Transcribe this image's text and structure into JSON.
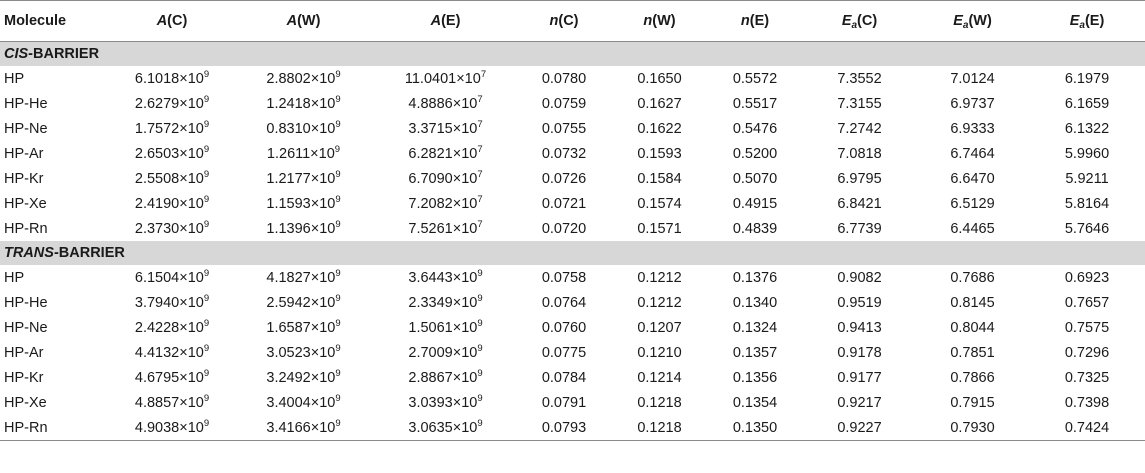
{
  "table": {
    "headers": [
      {
        "sym": "",
        "sub": "",
        "arg": "Molecule"
      },
      {
        "sym": "A",
        "sub": "",
        "arg": "(C)"
      },
      {
        "sym": "A",
        "sub": "",
        "arg": "(W)"
      },
      {
        "sym": "A",
        "sub": "",
        "arg": "(E)"
      },
      {
        "sym": "n",
        "sub": "",
        "arg": "(C)"
      },
      {
        "sym": "n",
        "sub": "",
        "arg": "(W)"
      },
      {
        "sym": "n",
        "sub": "",
        "arg": "(E)"
      },
      {
        "sym": "E",
        "sub": "a",
        "arg": "(C)"
      },
      {
        "sym": "E",
        "sub": "a",
        "arg": "(W)"
      },
      {
        "sym": "E",
        "sub": "a",
        "arg": "(E)"
      }
    ],
    "sections": [
      {
        "title_italic": "CIS",
        "title_rest": "-BARRIER",
        "rows": [
          {
            "molecule": "HP",
            "a": [
              {
                "m": "6.1018×10",
                "e": "9"
              },
              {
                "m": "2.8802×10",
                "e": "9"
              },
              {
                "m": "11.0401×10",
                "e": "7"
              }
            ],
            "vals": [
              "0.0780",
              "0.1650",
              "0.5572",
              "7.3552",
              "7.0124",
              "6.1979"
            ]
          },
          {
            "molecule": "HP-He",
            "a": [
              {
                "m": "2.6279×10",
                "e": "9"
              },
              {
                "m": "1.2418×10",
                "e": "9"
              },
              {
                "m": "4.8886×10",
                "e": "7"
              }
            ],
            "vals": [
              "0.0759",
              "0.1627",
              "0.5517",
              "7.3155",
              "6.9737",
              "6.1659"
            ]
          },
          {
            "molecule": "HP-Ne",
            "a": [
              {
                "m": "1.7572×10",
                "e": "9"
              },
              {
                "m": "0.8310×10",
                "e": "9"
              },
              {
                "m": "3.3715×10",
                "e": "7"
              }
            ],
            "vals": [
              "0.0755",
              "0.1622",
              "0.5476",
              "7.2742",
              "6.9333",
              "6.1322"
            ]
          },
          {
            "molecule": "HP-Ar",
            "a": [
              {
                "m": "2.6503×10",
                "e": "9"
              },
              {
                "m": "1.2611×10",
                "e": "9"
              },
              {
                "m": "6.2821×10",
                "e": "7"
              }
            ],
            "vals": [
              "0.0732",
              "0.1593",
              "0.5200",
              "7.0818",
              "6.7464",
              "5.9960"
            ]
          },
          {
            "molecule": "HP-Kr",
            "a": [
              {
                "m": "2.5508×10",
                "e": "9"
              },
              {
                "m": "1.2177×10",
                "e": "9"
              },
              {
                "m": "6.7090×10",
                "e": "7"
              }
            ],
            "vals": [
              "0.0726",
              "0.1584",
              "0.5070",
              "6.9795",
              "6.6470",
              "5.9211"
            ]
          },
          {
            "molecule": "HP-Xe",
            "a": [
              {
                "m": "2.4190×10",
                "e": "9"
              },
              {
                "m": "1.1593×10",
                "e": "9"
              },
              {
                "m": "7.2082×10",
                "e": "7"
              }
            ],
            "vals": [
              "0.0721",
              "0.1574",
              "0.4915",
              "6.8421",
              "6.5129",
              "5.8164"
            ]
          },
          {
            "molecule": "HP-Rn",
            "a": [
              {
                "m": "2.3730×10",
                "e": "9"
              },
              {
                "m": "1.1396×10",
                "e": "9"
              },
              {
                "m": "7.5261×10",
                "e": "7"
              }
            ],
            "vals": [
              "0.0720",
              "0.1571",
              "0.4839",
              "6.7739",
              "6.4465",
              "5.7646"
            ]
          }
        ]
      },
      {
        "title_italic": "TRANS",
        "title_rest": "-BARRIER",
        "rows": [
          {
            "molecule": "HP",
            "a": [
              {
                "m": "6.1504×10",
                "e": "9"
              },
              {
                "m": "4.1827×10",
                "e": "9"
              },
              {
                "m": "3.6443×10",
                "e": "9"
              }
            ],
            "vals": [
              "0.0758",
              "0.1212",
              "0.1376",
              "0.9082",
              "0.7686",
              "0.6923"
            ]
          },
          {
            "molecule": "HP-He",
            "a": [
              {
                "m": "3.7940×10",
                "e": "9"
              },
              {
                "m": "2.5942×10",
                "e": "9"
              },
              {
                "m": "2.3349×10",
                "e": "9"
              }
            ],
            "vals": [
              "0.0764",
              "0.1212",
              "0.1340",
              "0.9519",
              "0.8145",
              "0.7657"
            ]
          },
          {
            "molecule": "HP-Ne",
            "a": [
              {
                "m": "2.4228×10",
                "e": "9"
              },
              {
                "m": "1.6587×10",
                "e": "9"
              },
              {
                "m": "1.5061×10",
                "e": "9"
              }
            ],
            "vals": [
              "0.0760",
              "0.1207",
              "0.1324",
              "0.9413",
              "0.8044",
              "0.7575"
            ]
          },
          {
            "molecule": "HP-Ar",
            "a": [
              {
                "m": "4.4132×10",
                "e": "9"
              },
              {
                "m": "3.0523×10",
                "e": "9"
              },
              {
                "m": "2.7009×10",
                "e": "9"
              }
            ],
            "vals": [
              "0.0775",
              "0.1210",
              "0.1357",
              "0.9178",
              "0.7851",
              "0.7296"
            ]
          },
          {
            "molecule": "HP-Kr",
            "a": [
              {
                "m": "4.6795×10",
                "e": "9"
              },
              {
                "m": "3.2492×10",
                "e": "9"
              },
              {
                "m": "2.8867×10",
                "e": "9"
              }
            ],
            "vals": [
              "0.0784",
              "0.1214",
              "0.1356",
              "0.9177",
              "0.7866",
              "0.7325"
            ]
          },
          {
            "molecule": "HP-Xe",
            "a": [
              {
                "m": "4.8857×10",
                "e": "9"
              },
              {
                "m": "3.4004×10",
                "e": "9"
              },
              {
                "m": "3.0393×10",
                "e": "9"
              }
            ],
            "vals": [
              "0.0791",
              "0.1218",
              "0.1354",
              "0.9217",
              "0.7915",
              "0.7398"
            ]
          },
          {
            "molecule": "HP-Rn",
            "a": [
              {
                "m": "4.9038×10",
                "e": "9"
              },
              {
                "m": "3.4166×10",
                "e": "9"
              },
              {
                "m": "3.0635×10",
                "e": "9"
              }
            ],
            "vals": [
              "0.0793",
              "0.1218",
              "0.1350",
              "0.9227",
              "0.7930",
              "0.7424"
            ]
          }
        ]
      }
    ]
  }
}
